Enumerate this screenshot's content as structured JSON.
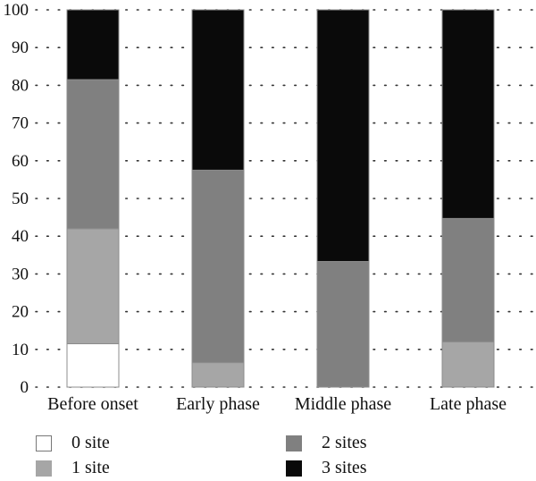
{
  "chart_data": {
    "type": "bar",
    "stacked": true,
    "categories": [
      "Before onset",
      "Early phase",
      "Middle phase",
      "Late phase"
    ],
    "series": [
      {
        "name": "0 site",
        "color": "#ffffff",
        "values": [
          11.5,
          0,
          0,
          0
        ]
      },
      {
        "name": "1 site",
        "color": "#a6a6a6",
        "values": [
          30.5,
          6.5,
          0,
          12
        ]
      },
      {
        "name": "2 sites",
        "color": "#808080",
        "values": [
          39.5,
          51,
          33.3,
          32.7
        ]
      },
      {
        "name": "3 sites",
        "color": "#0a0a0a",
        "values": [
          18.5,
          42.5,
          66.7,
          55.3
        ]
      }
    ],
    "yticks": [
      0,
      10,
      20,
      30,
      40,
      50,
      60,
      70,
      80,
      90,
      100
    ],
    "ylim": [
      0,
      100
    ],
    "grid": "dotted-horizontal",
    "legend_position": "bottom"
  }
}
